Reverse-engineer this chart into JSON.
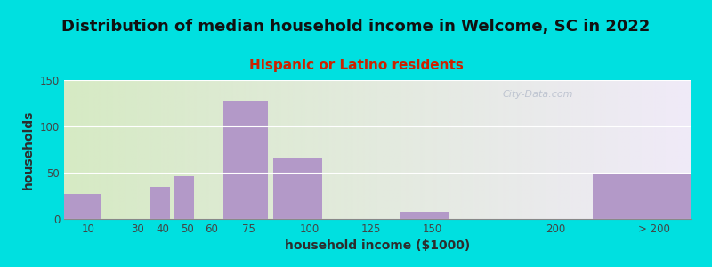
{
  "title": "Distribution of median household income in Welcome, SC in 2022",
  "subtitle": "Hispanic or Latino residents",
  "xlabel": "household income ($1000)",
  "ylabel": "households",
  "bar_color": "#b399c8",
  "background_outer": "#00e0e0",
  "background_inner_left": "#d6eac4",
  "background_inner_right": "#f0eaf8",
  "categories": [
    "10",
    "30",
    "40",
    "50",
    "60",
    "75",
    "100",
    "125",
    "150",
    "200",
    "> 200"
  ],
  "tick_positions": [
    10,
    30,
    40,
    50,
    60,
    75,
    100,
    125,
    150,
    200,
    240
  ],
  "bar_lefts": [
    0,
    20,
    35,
    45,
    55,
    65,
    85,
    112,
    137,
    175,
    215
  ],
  "bar_widths": [
    15,
    0,
    8,
    8,
    8,
    18,
    20,
    0,
    20,
    0,
    40
  ],
  "values": [
    27,
    0,
    35,
    46,
    0,
    128,
    65,
    0,
    8,
    0,
    50
  ],
  "xlim": [
    0,
    255
  ],
  "ylim": [
    0,
    150
  ],
  "yticks": [
    0,
    50,
    100,
    150
  ],
  "title_fontsize": 13,
  "subtitle_fontsize": 11,
  "axis_label_fontsize": 10,
  "tick_fontsize": 8.5,
  "watermark_text": "City-Data.com"
}
